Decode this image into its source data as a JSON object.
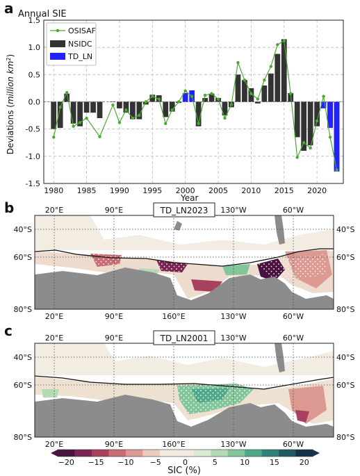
{
  "panel_a": {
    "letter": "a",
    "title": "Annual SIE",
    "ylabel_prefix": "Deviations (",
    "ylabel_italic": "million km",
    "ylabel_sup": "2",
    "ylabel_suffix": ")",
    "xlabel": "Year",
    "legend": {
      "osisaf": "OSISAF",
      "nsidc": "NSIDC",
      "td_ln": "TD_LN"
    }
  },
  "panel_b": {
    "letter": "b",
    "title": "TD_LN2023"
  },
  "panel_c": {
    "letter": "c",
    "title": "TD_LN2001"
  },
  "map_labels": {
    "top_lon": [
      "20°E",
      "90°E",
      "160°E",
      "130°W",
      "60°W"
    ],
    "bottom_lon": [
      "20°E",
      "90°E",
      "160°E",
      "130°W",
      "60°W"
    ],
    "left_lat": [
      "40°S",
      "60°S",
      "80°S"
    ],
    "right_lat": [
      "40°S",
      "60°S",
      "80°S"
    ]
  },
  "colorbar": {
    "label": "SIC (%)",
    "ticks": [
      "−20",
      "−15",
      "−10",
      "−5",
      "0",
      "5",
      "10",
      "15",
      "20"
    ],
    "colors": [
      "#4a1240",
      "#7b2557",
      "#a8405f",
      "#c76d73",
      "#dc9a92",
      "#edcab9",
      "#f2eadf",
      "#f0ece2",
      "#d9ebd2",
      "#b3dcb4",
      "#83c59a",
      "#4fa88a",
      "#2f8277",
      "#215b62",
      "#17314b"
    ]
  },
  "colors": {
    "osisaf": "#4aaa30",
    "nsidc": "#333333",
    "td_ln": "#2222ff",
    "land": "#8c8c8c"
  },
  "chart_data": {
    "type": "bar",
    "title": "Annual SIE",
    "xlabel": "Year",
    "ylabel": "Deviations (million km2)",
    "xlim": [
      1978.5,
      2024
    ],
    "ylim": [
      -1.5,
      1.5
    ],
    "xticks": [
      1980,
      1985,
      1990,
      1995,
      2000,
      2005,
      2010,
      2015,
      2020
    ],
    "yticks": [
      -1.5,
      -1.0,
      -0.5,
      0.0,
      0.5,
      1.0,
      1.5
    ],
    "grid": true,
    "legend_position": "top-left",
    "series": [
      {
        "name": "NSIDC",
        "type": "bar",
        "x": [
          1980,
          1981,
          1982,
          1983,
          1984,
          1985,
          1986,
          1987,
          1989,
          1990,
          1991,
          1992,
          1993,
          1994,
          1995,
          1996,
          1997,
          1998,
          1999,
          2002,
          2003,
          2004,
          2005,
          2006,
          2007,
          2008,
          2009,
          2010,
          2011,
          2012,
          2013,
          2014,
          2015,
          2016,
          2017,
          2018,
          2019,
          2020,
          2021,
          2022,
          2023
        ],
        "values": [
          -0.5,
          -0.48,
          0.15,
          -0.4,
          -0.45,
          -0.2,
          -0.2,
          -0.3,
          0.0,
          -0.12,
          -0.2,
          -0.32,
          -0.32,
          -0.05,
          0.13,
          0.12,
          -0.28,
          -0.18,
          -0.02,
          -0.45,
          0.07,
          0.15,
          0.07,
          -0.25,
          -0.1,
          0.5,
          0.4,
          0.25,
          -0.03,
          0.3,
          0.52,
          0.88,
          1.15,
          0.16,
          -0.65,
          -0.9,
          -0.8,
          -0.45,
          -0.05,
          -0.45,
          -1.25
        ]
      },
      {
        "name": "TD_LN",
        "type": "bar",
        "x": [
          2000,
          2001,
          2021,
          2022,
          2023
        ],
        "values": [
          0.16,
          0.21,
          -0.12,
          -0.48,
          -1.28
        ]
      },
      {
        "name": "OSISAF",
        "type": "line",
        "x": [
          1980,
          1981,
          1982,
          1983,
          1984,
          1985,
          1987,
          1989,
          1990,
          1991,
          1992,
          1993,
          1994,
          1995,
          1996,
          1997,
          1998,
          1999,
          2000,
          2001,
          2002,
          2003,
          2004,
          2005,
          2006,
          2007,
          2008,
          2009,
          2010,
          2011,
          2012,
          2013,
          2014,
          2015,
          2016,
          2017,
          2018,
          2019,
          2020,
          2021,
          2022,
          2023
        ],
        "values": [
          -0.65,
          -0.1,
          0.17,
          -0.45,
          -0.38,
          -0.3,
          -0.64,
          -0.06,
          -0.38,
          -0.15,
          -0.3,
          -0.25,
          0.0,
          0.1,
          0.05,
          -0.4,
          -0.15,
          0.0,
          0.2,
          0.1,
          -0.4,
          0.12,
          0.15,
          0.05,
          -0.3,
          -0.05,
          0.72,
          0.4,
          0.15,
          0.05,
          0.4,
          0.65,
          1.05,
          1.12,
          0.15,
          -1.02,
          -0.75,
          -0.85,
          -0.35,
          0.1,
          -0.65,
          -1.25
        ]
      }
    ]
  }
}
